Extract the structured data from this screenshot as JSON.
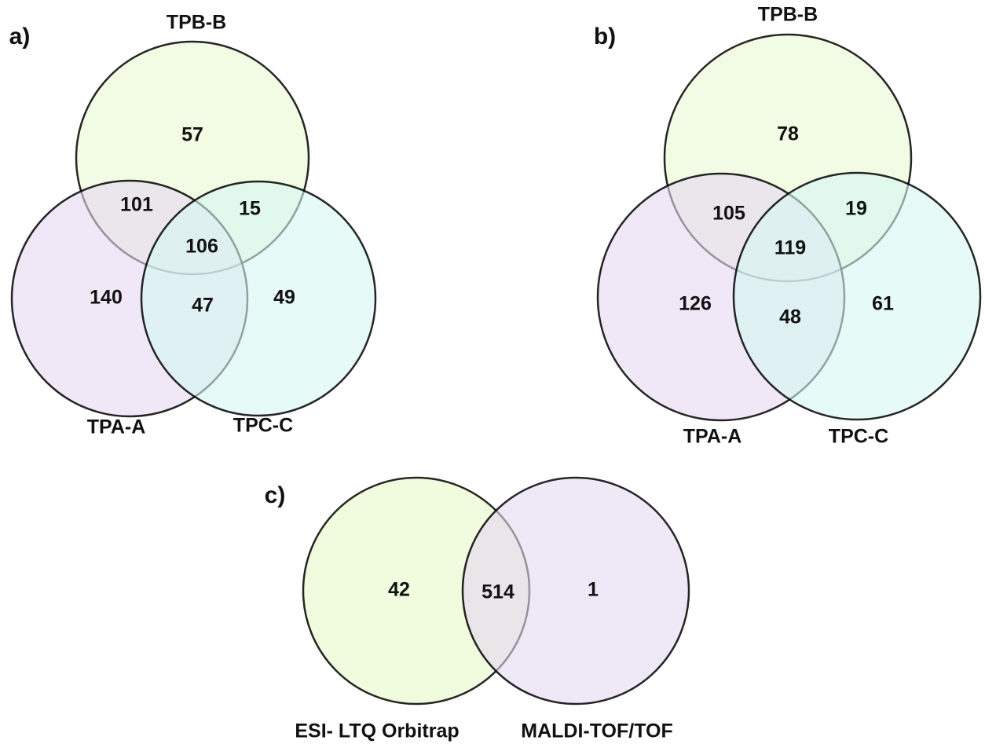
{
  "panels": [
    {
      "label": "a)",
      "sets": [
        {
          "name": "TPB-B",
          "color": "#eaf8d0"
        },
        {
          "name": "TPA-A",
          "color": "#e6d8f0"
        },
        {
          "name": "TPC-C",
          "color": "#d6f6f2"
        }
      ],
      "regions": [
        57,
        101,
        15,
        106,
        140,
        47,
        49
      ]
    },
    {
      "label": "b)",
      "sets": [
        {
          "name": "TPB-B",
          "color": "#eaf8d0"
        },
        {
          "name": "TPA-A",
          "color": "#e6d8f0"
        },
        {
          "name": "TPC-C",
          "color": "#d6f6f2"
        }
      ],
      "regions": [
        78,
        105,
        19,
        119,
        126,
        48,
        61
      ]
    },
    {
      "label": "c)",
      "sets": [
        {
          "name": "ESI- LTQ Orbitrap",
          "color": "#e8f8c8"
        },
        {
          "name": "MALDI-TOF/TOF",
          "color": "#e4d8f0"
        }
      ],
      "regions": [
        42,
        514,
        1
      ]
    }
  ]
}
